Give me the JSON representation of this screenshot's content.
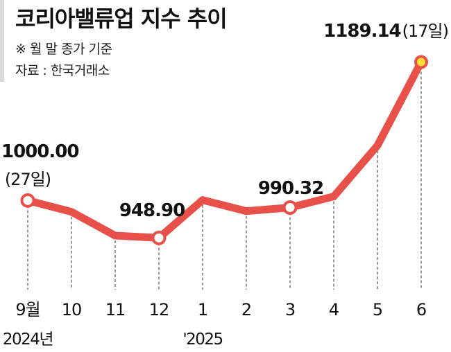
{
  "title": "코리아밸류업 지수 추이",
  "note": "※ 월 말 종가 기준",
  "source": "자료 : 한국거래소",
  "colors": {
    "line": "#e8504a",
    "marker_fill": "#ffffff",
    "highlight_fill": "#ffe033",
    "guide": "#555555",
    "text": "#111111"
  },
  "chart_data": {
    "type": "line",
    "categories": [
      "9월",
      "10",
      "11",
      "12",
      "1",
      "2",
      "3",
      "4",
      "5",
      "6"
    ],
    "year_labels": [
      {
        "category_index": 0,
        "text": "2024년"
      },
      {
        "category_index": 4,
        "text": "'2025"
      }
    ],
    "values": [
      1000.0,
      984.5,
      952.0,
      948.9,
      1000.6,
      985.5,
      990.32,
      1005.5,
      1075.0,
      1189.14
    ],
    "ylim": [
      900,
      1200
    ],
    "grid": false,
    "labeled_points": [
      {
        "index": 0,
        "value_text": "1000.00",
        "note_text": "(27일)",
        "marker": "circle"
      },
      {
        "index": 3,
        "value_text": "948.90",
        "note_text": "",
        "marker": "circle"
      },
      {
        "index": 6,
        "value_text": "990.32",
        "note_text": "",
        "marker": "circle"
      },
      {
        "index": 9,
        "value_text": "1189.14",
        "note_text": "(17일)",
        "marker": "highlight"
      }
    ]
  }
}
